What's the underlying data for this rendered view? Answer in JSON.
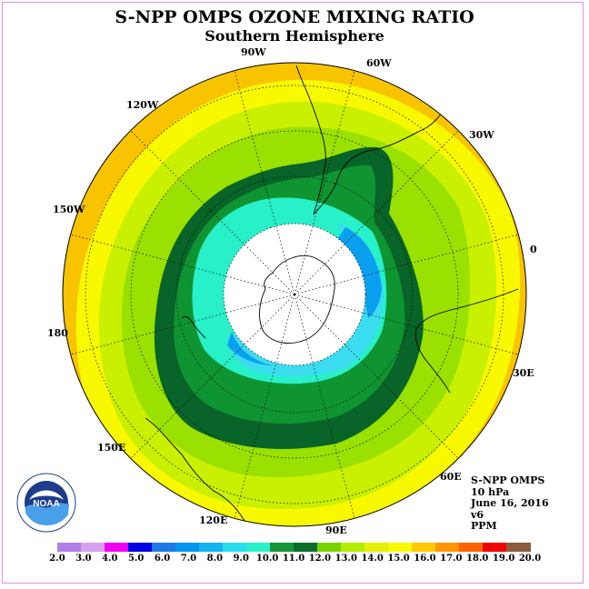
{
  "title": "S-NPP OMPS OZONE MIXING RATIO",
  "subtitle": "Southern Hemisphere",
  "longitude_labels": [
    "90W",
    "60W",
    "30W",
    "0",
    "30E",
    "60E",
    "90E",
    "120E",
    "150E",
    "180",
    "150W",
    "120W"
  ],
  "info": {
    "line1": "S-NPP OMPS",
    "line2": "10 hPa",
    "line3": "June 16, 2016",
    "line4": "v6",
    "line5": "PPM"
  },
  "logo_text": "NOAA",
  "colorbar": {
    "ticks": [
      "2.0",
      "3.0",
      "4.0",
      "5.0",
      "6.0",
      "7.0",
      "8.0",
      "9.0",
      "10.0",
      "11.0",
      "12.0",
      "13.0",
      "14.0",
      "15.0",
      "16.0",
      "17.0",
      "18.0",
      "19.0",
      "20.0"
    ],
    "colors": [
      "#b07ee8",
      "#d8a0f0",
      "#f000f0",
      "#0000e6",
      "#1e78e6",
      "#0096f0",
      "#14b4f0",
      "#28dcf0",
      "#28f0c8",
      "#169638",
      "#0a6e2a",
      "#78d200",
      "#b4ec00",
      "#e6f000",
      "#fafa00",
      "#ffc800",
      "#ff9600",
      "#ff6400",
      "#f00000",
      "#8c5a3c"
    ]
  },
  "legend_colors": {
    "outer": "#f8c400",
    "yellow": "#f8f800",
    "lime": "#c8f000",
    "green1": "#9ae000",
    "green2": "#32b432",
    "green3": "#0f9432",
    "darkgreen": "#086428",
    "cyan": "#28f0c8",
    "cyan2": "#3cdcf0",
    "blue": "#0aa0f0",
    "pole": "#ffffff"
  }
}
